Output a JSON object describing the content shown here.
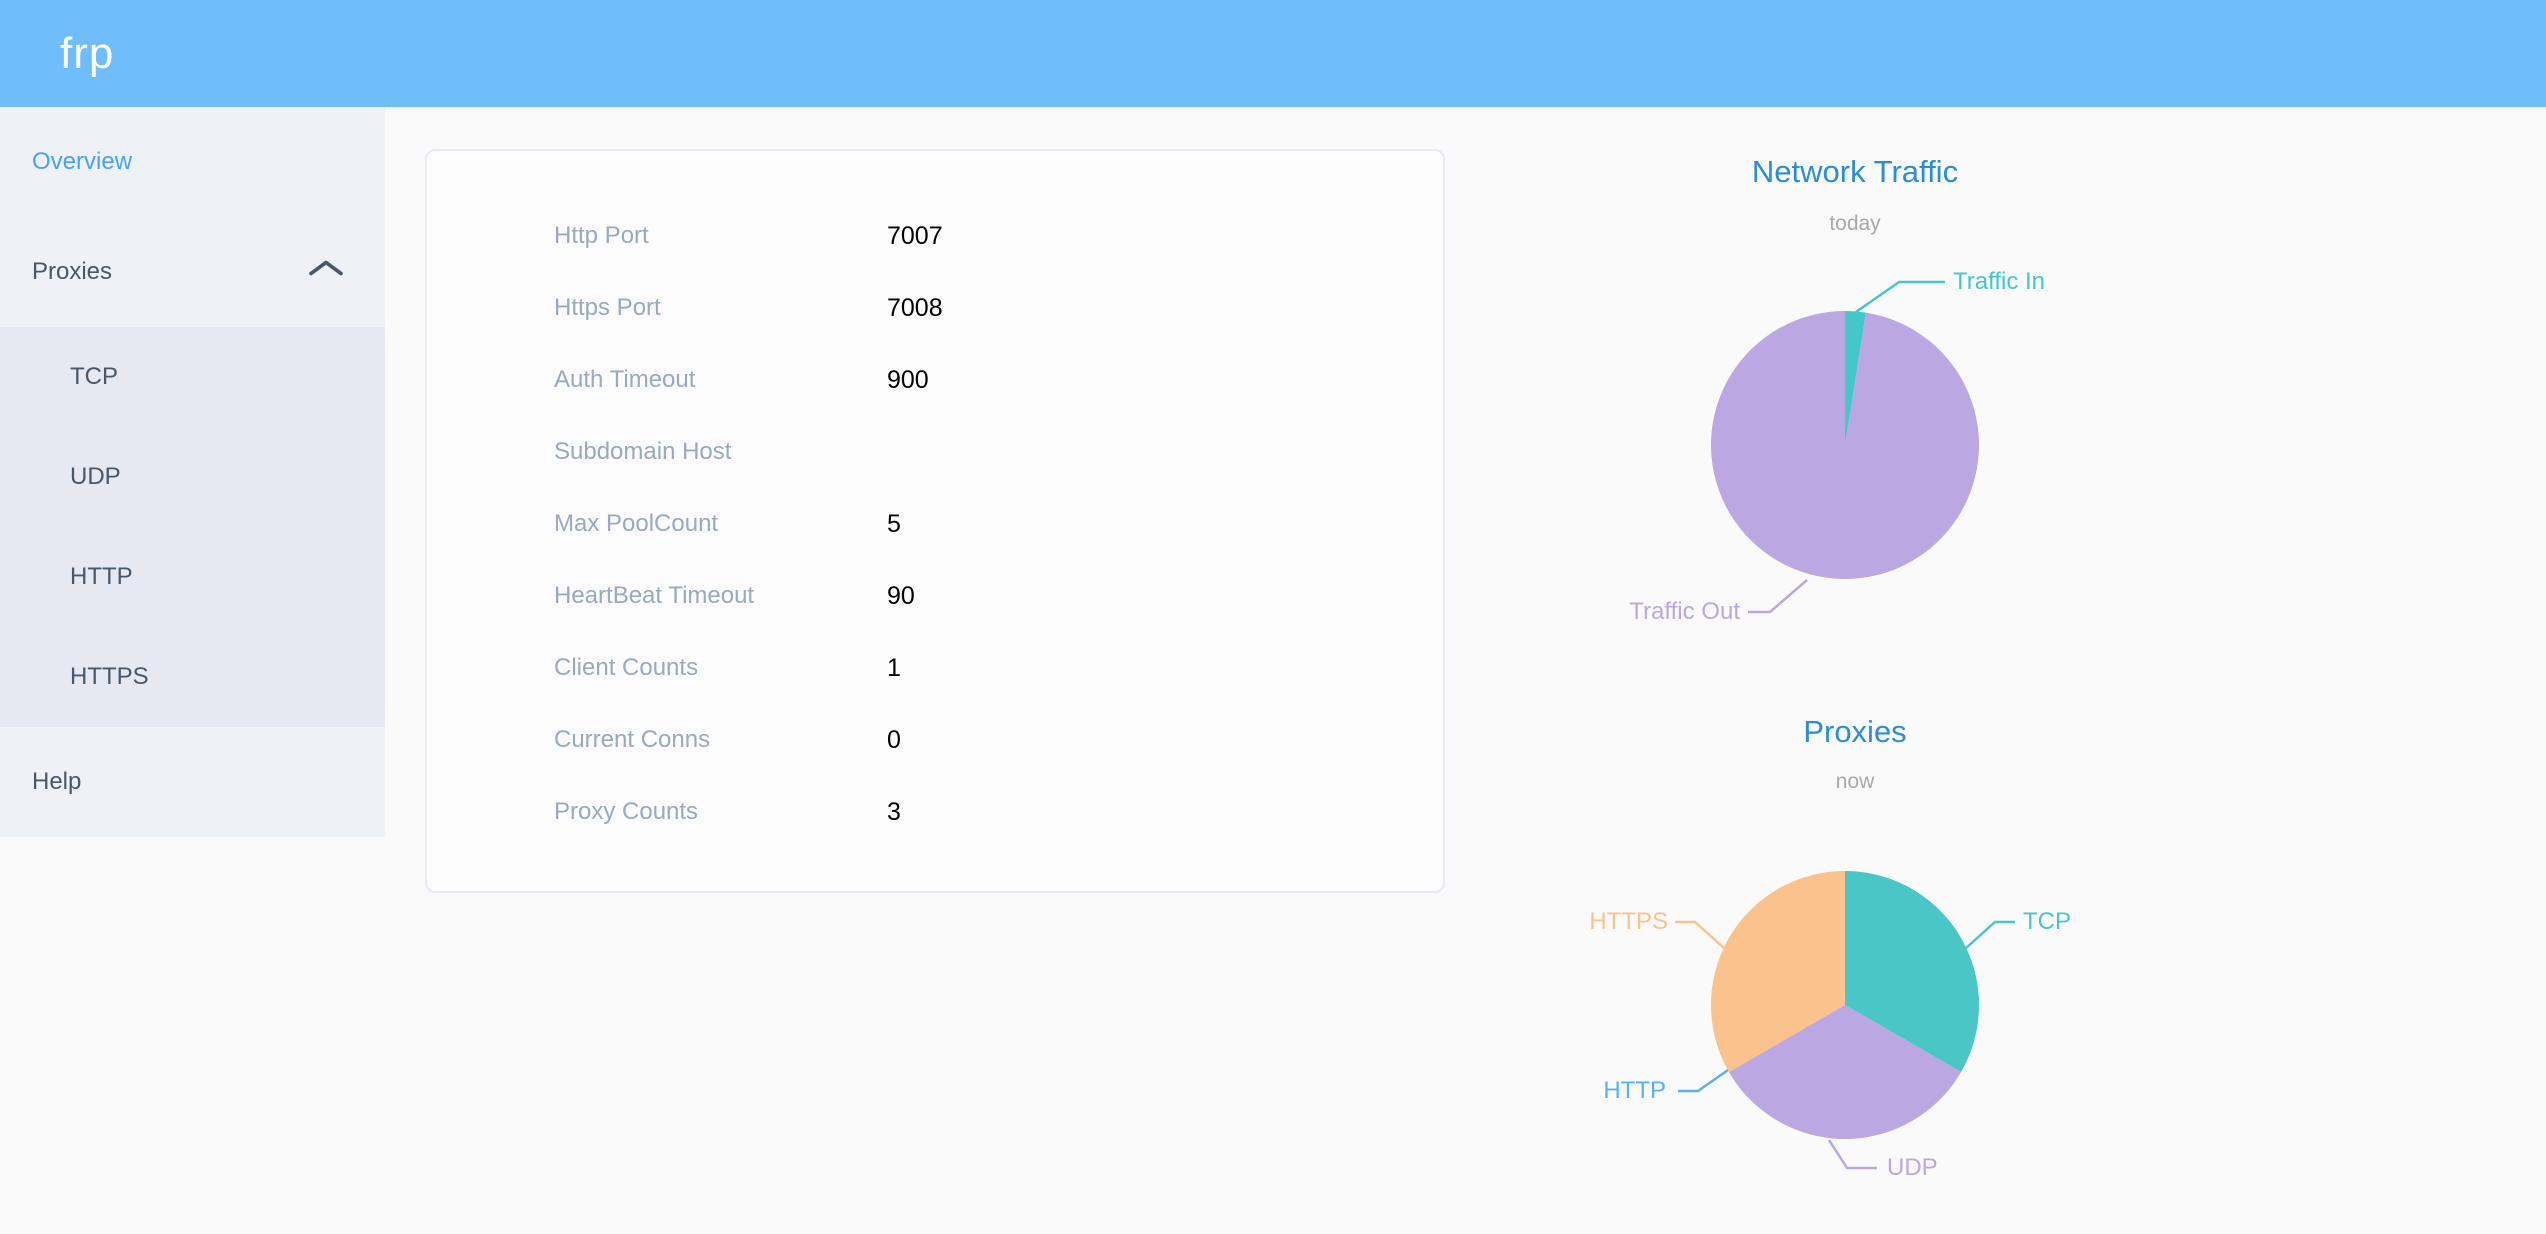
{
  "header": {
    "logo": "frp"
  },
  "sidebar": {
    "items": [
      {
        "label": "Overview",
        "active": true
      },
      {
        "label": "Proxies",
        "expanded": true,
        "children": [
          "TCP",
          "UDP",
          "HTTP",
          "HTTPS"
        ]
      },
      {
        "label": "Help"
      }
    ]
  },
  "overview_card": {
    "rows": [
      {
        "label": "Http Port",
        "value": "7007"
      },
      {
        "label": "Https Port",
        "value": "7008"
      },
      {
        "label": "Auth Timeout",
        "value": "900"
      },
      {
        "label": "Subdomain Host",
        "value": ""
      },
      {
        "label": "Max PoolCount",
        "value": "5"
      },
      {
        "label": "HeartBeat Timeout",
        "value": "90"
      },
      {
        "label": "Client Counts",
        "value": "1"
      },
      {
        "label": "Current Conns",
        "value": "0"
      },
      {
        "label": "Proxy Counts",
        "value": "3"
      }
    ]
  },
  "chart_data": [
    {
      "type": "pie",
      "title": "Network Traffic",
      "subtitle": "today",
      "unit": "percent (estimated from slice angles, no numeric labels shown)",
      "legend_position": "callout-labels",
      "slices": [
        {
          "label": "Traffic In",
          "value": 2.5,
          "color": "#43c7c9"
        },
        {
          "label": "Traffic Out",
          "value": 97.5,
          "color": "#bba7e1"
        }
      ]
    },
    {
      "type": "pie",
      "title": "Proxies",
      "subtitle": "now",
      "unit": "proxy count",
      "legend_position": "callout-labels",
      "slices": [
        {
          "label": "TCP",
          "value": 1,
          "color": "#4ac6c7"
        },
        {
          "label": "UDP",
          "value": 1,
          "color": "#bba7e1"
        },
        {
          "label": "HTTP",
          "value": 0,
          "color": "#5ab1ef"
        },
        {
          "label": "HTTPS",
          "value": 1,
          "color": "#fac28c"
        }
      ]
    }
  ],
  "colors": {
    "header_bg": "#6fbdfb",
    "sidebar_bg": "#eef1f6",
    "submenu_bg": "#e6e9f1",
    "menu_text": "#48576a",
    "menu_active": "#4a9ff8",
    "chart_title": "#2b8dd9",
    "card_label": "#99a9bf",
    "card_value": "#000000"
  }
}
